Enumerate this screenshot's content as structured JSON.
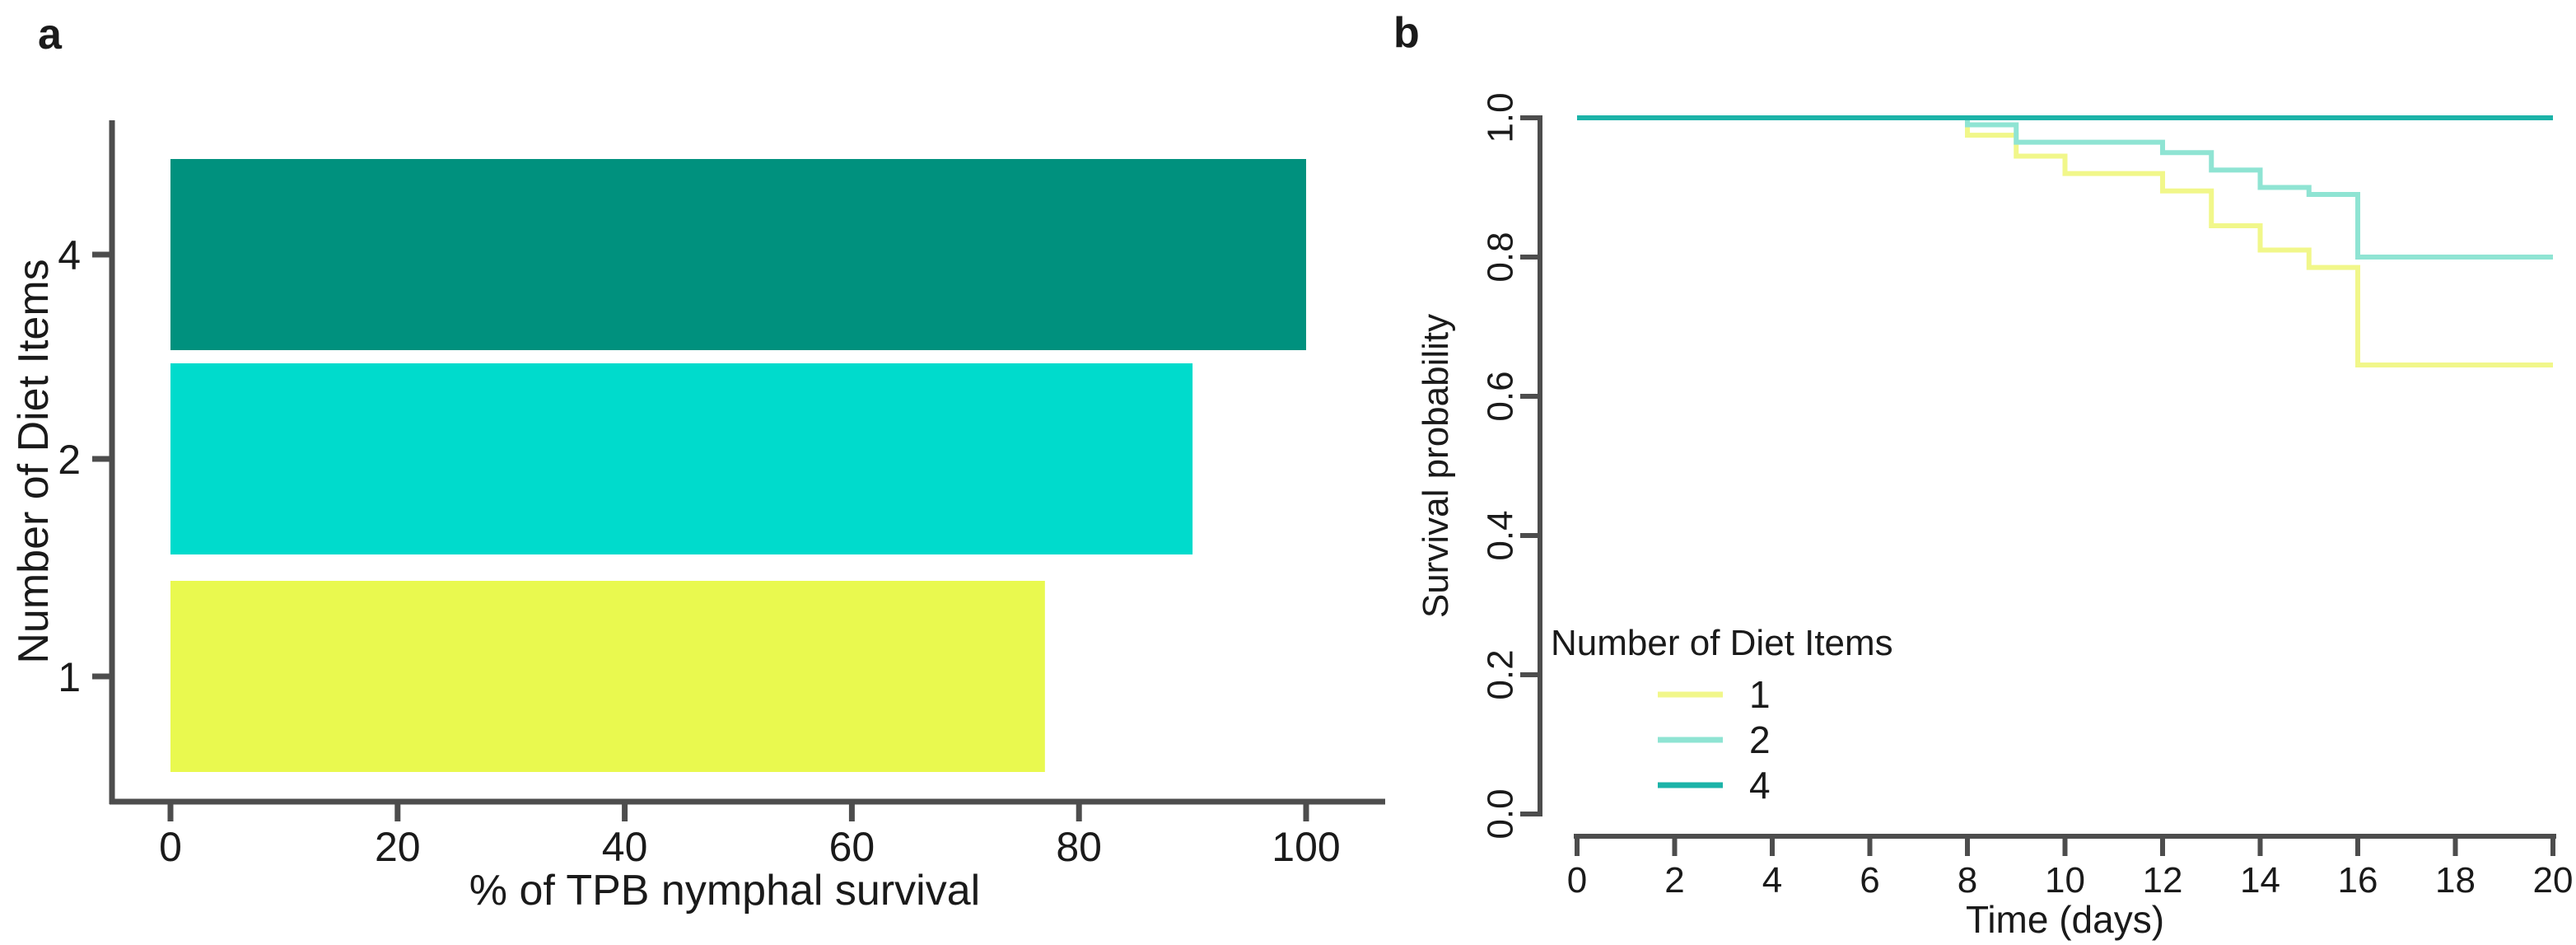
{
  "figure": {
    "background": "#ffffff",
    "axis_color": "#4d4d4d",
    "text_color": "#1a1a1a"
  },
  "panel_a": {
    "label": "a",
    "xlabel": "% of TPB nymphal survival",
    "ylabel": "Number of Diet Items",
    "x_tick_labels": [
      "0",
      "20",
      "40",
      "60",
      "80",
      "100"
    ],
    "y_tick_labels": [
      "4",
      "2",
      "1"
    ]
  },
  "panel_b": {
    "label": "b",
    "xlabel": "Time (days)",
    "ylabel": "Survival probability",
    "x_tick_labels": [
      "0",
      "2",
      "4",
      "6",
      "8",
      "10",
      "12",
      "14",
      "16",
      "18",
      "20"
    ],
    "y_tick_labels": [
      "1.0",
      "0.8",
      "0.6",
      "0.4",
      "0.2",
      "0.0"
    ],
    "legend": {
      "title": "Number of Diet Items",
      "entries": [
        {
          "label": "1",
          "color": "#f1f78a"
        },
        {
          "label": "2",
          "color": "#8fe4d3"
        },
        {
          "label": "4",
          "color": "#1cb3a8"
        }
      ]
    }
  },
  "chart_data": [
    {
      "id": "panel_a",
      "type": "bar",
      "orientation": "horizontal",
      "title": "",
      "xlabel": "% of TPB nymphal survival",
      "ylabel": "Number of Diet Items",
      "categories": [
        "4",
        "2",
        "1"
      ],
      "values": [
        100,
        90,
        77
      ],
      "bar_colors": [
        "#00917e",
        "#00dbcc",
        "#e9f94f"
      ],
      "xlim": [
        0,
        100
      ],
      "x_ticks": [
        0,
        20,
        40,
        60,
        80,
        100
      ],
      "grid": false,
      "legend_position": "none"
    },
    {
      "id": "panel_b",
      "type": "line",
      "line_style": "step-after",
      "title": "",
      "xlabel": "Time (days)",
      "ylabel": "Survival probability",
      "xlim": [
        0,
        20
      ],
      "ylim": [
        0.0,
        1.0
      ],
      "x_ticks": [
        0,
        2,
        4,
        6,
        8,
        10,
        12,
        14,
        16,
        18,
        20
      ],
      "y_ticks": [
        1.0,
        0.8,
        0.6,
        0.4,
        0.2,
        0.0
      ],
      "grid": false,
      "legend_position": "bottom-left",
      "legend_title": "Number of Diet Items",
      "series": [
        {
          "name": "1",
          "color": "#f1f78a",
          "x": [
            0,
            8,
            9,
            10,
            12,
            13,
            14,
            15,
            16,
            20
          ],
          "y": [
            1.0,
            0.975,
            0.945,
            0.92,
            0.895,
            0.845,
            0.81,
            0.785,
            0.645,
            0.645
          ]
        },
        {
          "name": "2",
          "color": "#8fe4d3",
          "x": [
            0,
            8,
            9,
            12,
            13,
            14,
            15,
            16,
            20
          ],
          "y": [
            1.0,
            0.99,
            0.965,
            0.95,
            0.925,
            0.9,
            0.89,
            0.8,
            0.8
          ]
        },
        {
          "name": "4",
          "color": "#1cb3a8",
          "x": [
            0,
            20
          ],
          "y": [
            1.0,
            1.0
          ]
        }
      ]
    }
  ]
}
